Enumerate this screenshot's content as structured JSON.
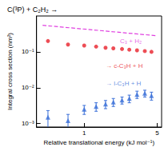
{
  "chart_data": {
    "type": "scatter",
    "title": "C(³P) + C₂H₂ →",
    "x_label": "Relative translational energy (kJ mol⁻¹)",
    "y_label": "Integral cross section (nm²)",
    "log": true,
    "xlim": [
      0.35,
      5.5
    ],
    "xticks": [
      1,
      5
    ],
    "ylim": [
      0.0008,
      1
    ],
    "yticks": [
      {
        "value": 0.001,
        "label": "10⁻³"
      },
      {
        "value": 0.01,
        "label": "10⁻²"
      },
      {
        "value": 0.1,
        "label": "10⁻¹"
      }
    ],
    "series": [
      {
        "type": "line",
        "line_style": "dashed",
        "color": "#e040e0",
        "x": [
          0.4,
          5
        ],
        "values": [
          0.55,
          0.28
        ]
      },
      {
        "type": "scatter",
        "marker": "circle",
        "color": "#e8202a",
        "x": [
          0.45,
          0.7,
          1.0,
          1.3,
          1.6,
          1.9,
          2.3,
          2.7,
          3.2,
          3.8,
          4.4
        ],
        "values": [
          0.2,
          0.16,
          0.15,
          0.14,
          0.13,
          0.125,
          0.12,
          0.115,
          0.11,
          0.105,
          0.1
        ]
      },
      {
        "type": "scatter",
        "marker": "triangle",
        "color": "#3a6fd8",
        "x": [
          0.45,
          0.7,
          1.0,
          1.3,
          1.6,
          1.9,
          2.3,
          2.7,
          3.2,
          3.8,
          4.4
        ],
        "values": [
          0.0015,
          0.0012,
          0.0025,
          0.003,
          0.0035,
          0.004,
          0.0045,
          0.005,
          0.0065,
          0.007,
          0.006
        ],
        "errors": [
          0.0008,
          0.0006,
          0.0007,
          0.0008,
          0.0009,
          0.001,
          0.001,
          0.0012,
          0.0015,
          0.0015,
          0.0015
        ]
      }
    ],
    "annotations": [
      {
        "text": "C₃ + H₂",
        "x": 2.2,
        "y": 0.2,
        "color": "#e040e0"
      },
      {
        "text": "→ c-C₃H + H",
        "x": 1.6,
        "y": 0.04,
        "color": "#e8202a"
      },
      {
        "text": "→ l-C₃H + H",
        "x": 1.6,
        "y": 0.013,
        "color": "#3a6fd8"
      }
    ]
  }
}
